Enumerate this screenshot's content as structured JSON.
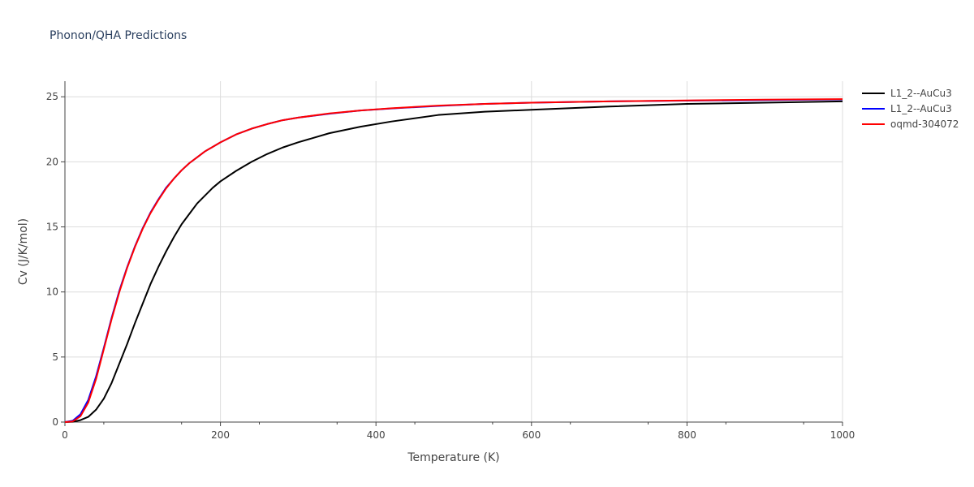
{
  "chart_data": {
    "type": "line",
    "title": "Phonon/QHA Predictions",
    "xlabel": "Temperature (K)",
    "ylabel": "Cv (J/K/mol)",
    "xlim": [
      0,
      1000
    ],
    "ylim": [
      0,
      26.2
    ],
    "xticks": [
      0,
      200,
      400,
      600,
      800,
      1000
    ],
    "yticks": [
      0,
      5,
      10,
      15,
      20,
      25
    ],
    "grid": true,
    "legend_position": "top-right, outside plot",
    "series": [
      {
        "name": "L1_2--AuCu3",
        "color": "#000000",
        "x": [
          0,
          10,
          20,
          30,
          40,
          50,
          60,
          70,
          80,
          90,
          100,
          110,
          120,
          130,
          140,
          150,
          160,
          170,
          180,
          190,
          200,
          220,
          240,
          260,
          280,
          300,
          340,
          380,
          420,
          480,
          540,
          600,
          700,
          800,
          900,
          1000
        ],
        "y": [
          0,
          0.02,
          0.15,
          0.4,
          0.95,
          1.8,
          3.0,
          4.5,
          6.0,
          7.6,
          9.1,
          10.6,
          11.9,
          13.1,
          14.2,
          15.2,
          16.0,
          16.8,
          17.4,
          18.0,
          18.5,
          19.3,
          20.0,
          20.6,
          21.1,
          21.5,
          22.2,
          22.7,
          23.1,
          23.6,
          23.85,
          24.0,
          24.25,
          24.45,
          24.55,
          24.65
        ]
      },
      {
        "name": "L1_2--AuCu3",
        "color": "#0000ff",
        "x": [
          0,
          10,
          20,
          30,
          40,
          50,
          60,
          70,
          80,
          90,
          100,
          110,
          120,
          130,
          140,
          150,
          160,
          170,
          180,
          190,
          200,
          220,
          240,
          260,
          280,
          300,
          340,
          380,
          420,
          480,
          540,
          600,
          700,
          800,
          900,
          1000
        ],
        "y": [
          0,
          0.1,
          0.6,
          1.7,
          3.5,
          5.7,
          8.0,
          10.1,
          11.9,
          13.5,
          14.9,
          16.1,
          17.1,
          18.0,
          18.7,
          19.35,
          19.9,
          20.35,
          20.8,
          21.15,
          21.5,
          22.1,
          22.55,
          22.9,
          23.2,
          23.4,
          23.7,
          23.95,
          24.1,
          24.3,
          24.45,
          24.55,
          24.65,
          24.7,
          24.75,
          24.8
        ]
      },
      {
        "name": "oqmd-304072",
        "color": "#ff0000",
        "x": [
          0,
          10,
          20,
          30,
          40,
          50,
          60,
          70,
          80,
          90,
          100,
          110,
          120,
          130,
          140,
          150,
          160,
          170,
          180,
          190,
          200,
          220,
          240,
          260,
          280,
          300,
          340,
          380,
          420,
          480,
          540,
          600,
          700,
          800,
          900,
          1000
        ],
        "y": [
          0,
          0.05,
          0.45,
          1.5,
          3.3,
          5.6,
          7.9,
          10.0,
          11.85,
          13.45,
          14.85,
          16.05,
          17.05,
          17.95,
          18.7,
          19.35,
          19.9,
          20.35,
          20.8,
          21.15,
          21.5,
          22.1,
          22.55,
          22.9,
          23.2,
          23.4,
          23.72,
          23.95,
          24.12,
          24.32,
          24.45,
          24.55,
          24.65,
          24.72,
          24.78,
          24.82
        ]
      }
    ]
  }
}
